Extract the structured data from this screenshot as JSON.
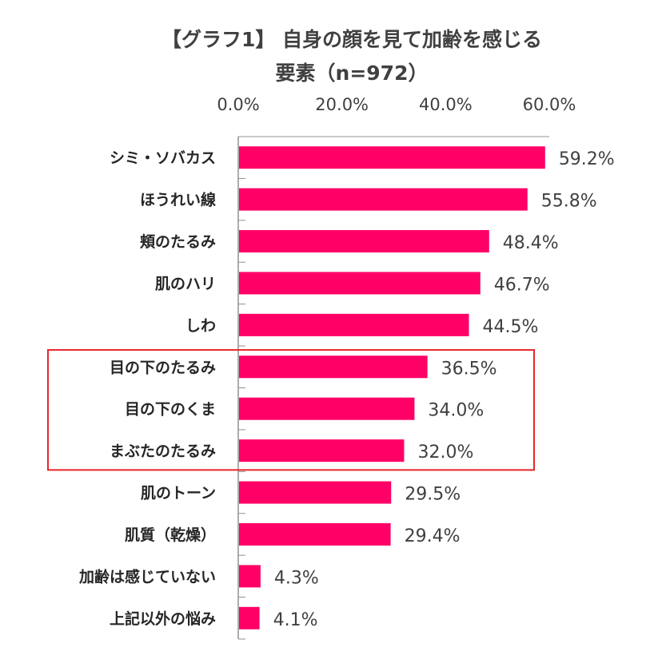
{
  "chart_data": {
    "type": "bar",
    "orientation": "horizontal",
    "title_line1": "【グラフ1】 自身の顔を見て加齢を感じる",
    "title_line2": "要素（n=972）",
    "categories": [
      "シミ・ソバカス",
      "ほうれい線",
      "頬のたるみ",
      "肌のハリ",
      "しわ",
      "目の下のたるみ",
      "目の下のくま",
      "まぶたのたるみ",
      "肌のトーン",
      "肌質（乾燥）",
      "加齢は感じていない",
      "上記以外の悩み"
    ],
    "values": [
      59.2,
      55.8,
      48.4,
      46.7,
      44.5,
      36.5,
      34.0,
      32.0,
      29.5,
      29.4,
      4.3,
      4.1
    ],
    "value_labels": [
      "59.2%",
      "55.8%",
      "48.4%",
      "46.7%",
      "44.5%",
      "36.5%",
      "34.0%",
      "32.0%",
      "29.5%",
      "29.4%",
      "4.3%",
      "4.1%"
    ],
    "xlim": [
      0,
      60
    ],
    "x_ticks": [
      "0.0%",
      "20.0%",
      "40.0%",
      "60.0%"
    ],
    "x_tick_values": [
      0,
      20,
      40,
      60
    ],
    "axis_position": "top",
    "grid": false,
    "highlighted_categories": [
      "目の下のたるみ",
      "目の下のくま",
      "まぶたのたるみ"
    ],
    "colors": {
      "bar": "#FF0066",
      "highlight_box": "#E8262A",
      "text": "#404040"
    }
  }
}
